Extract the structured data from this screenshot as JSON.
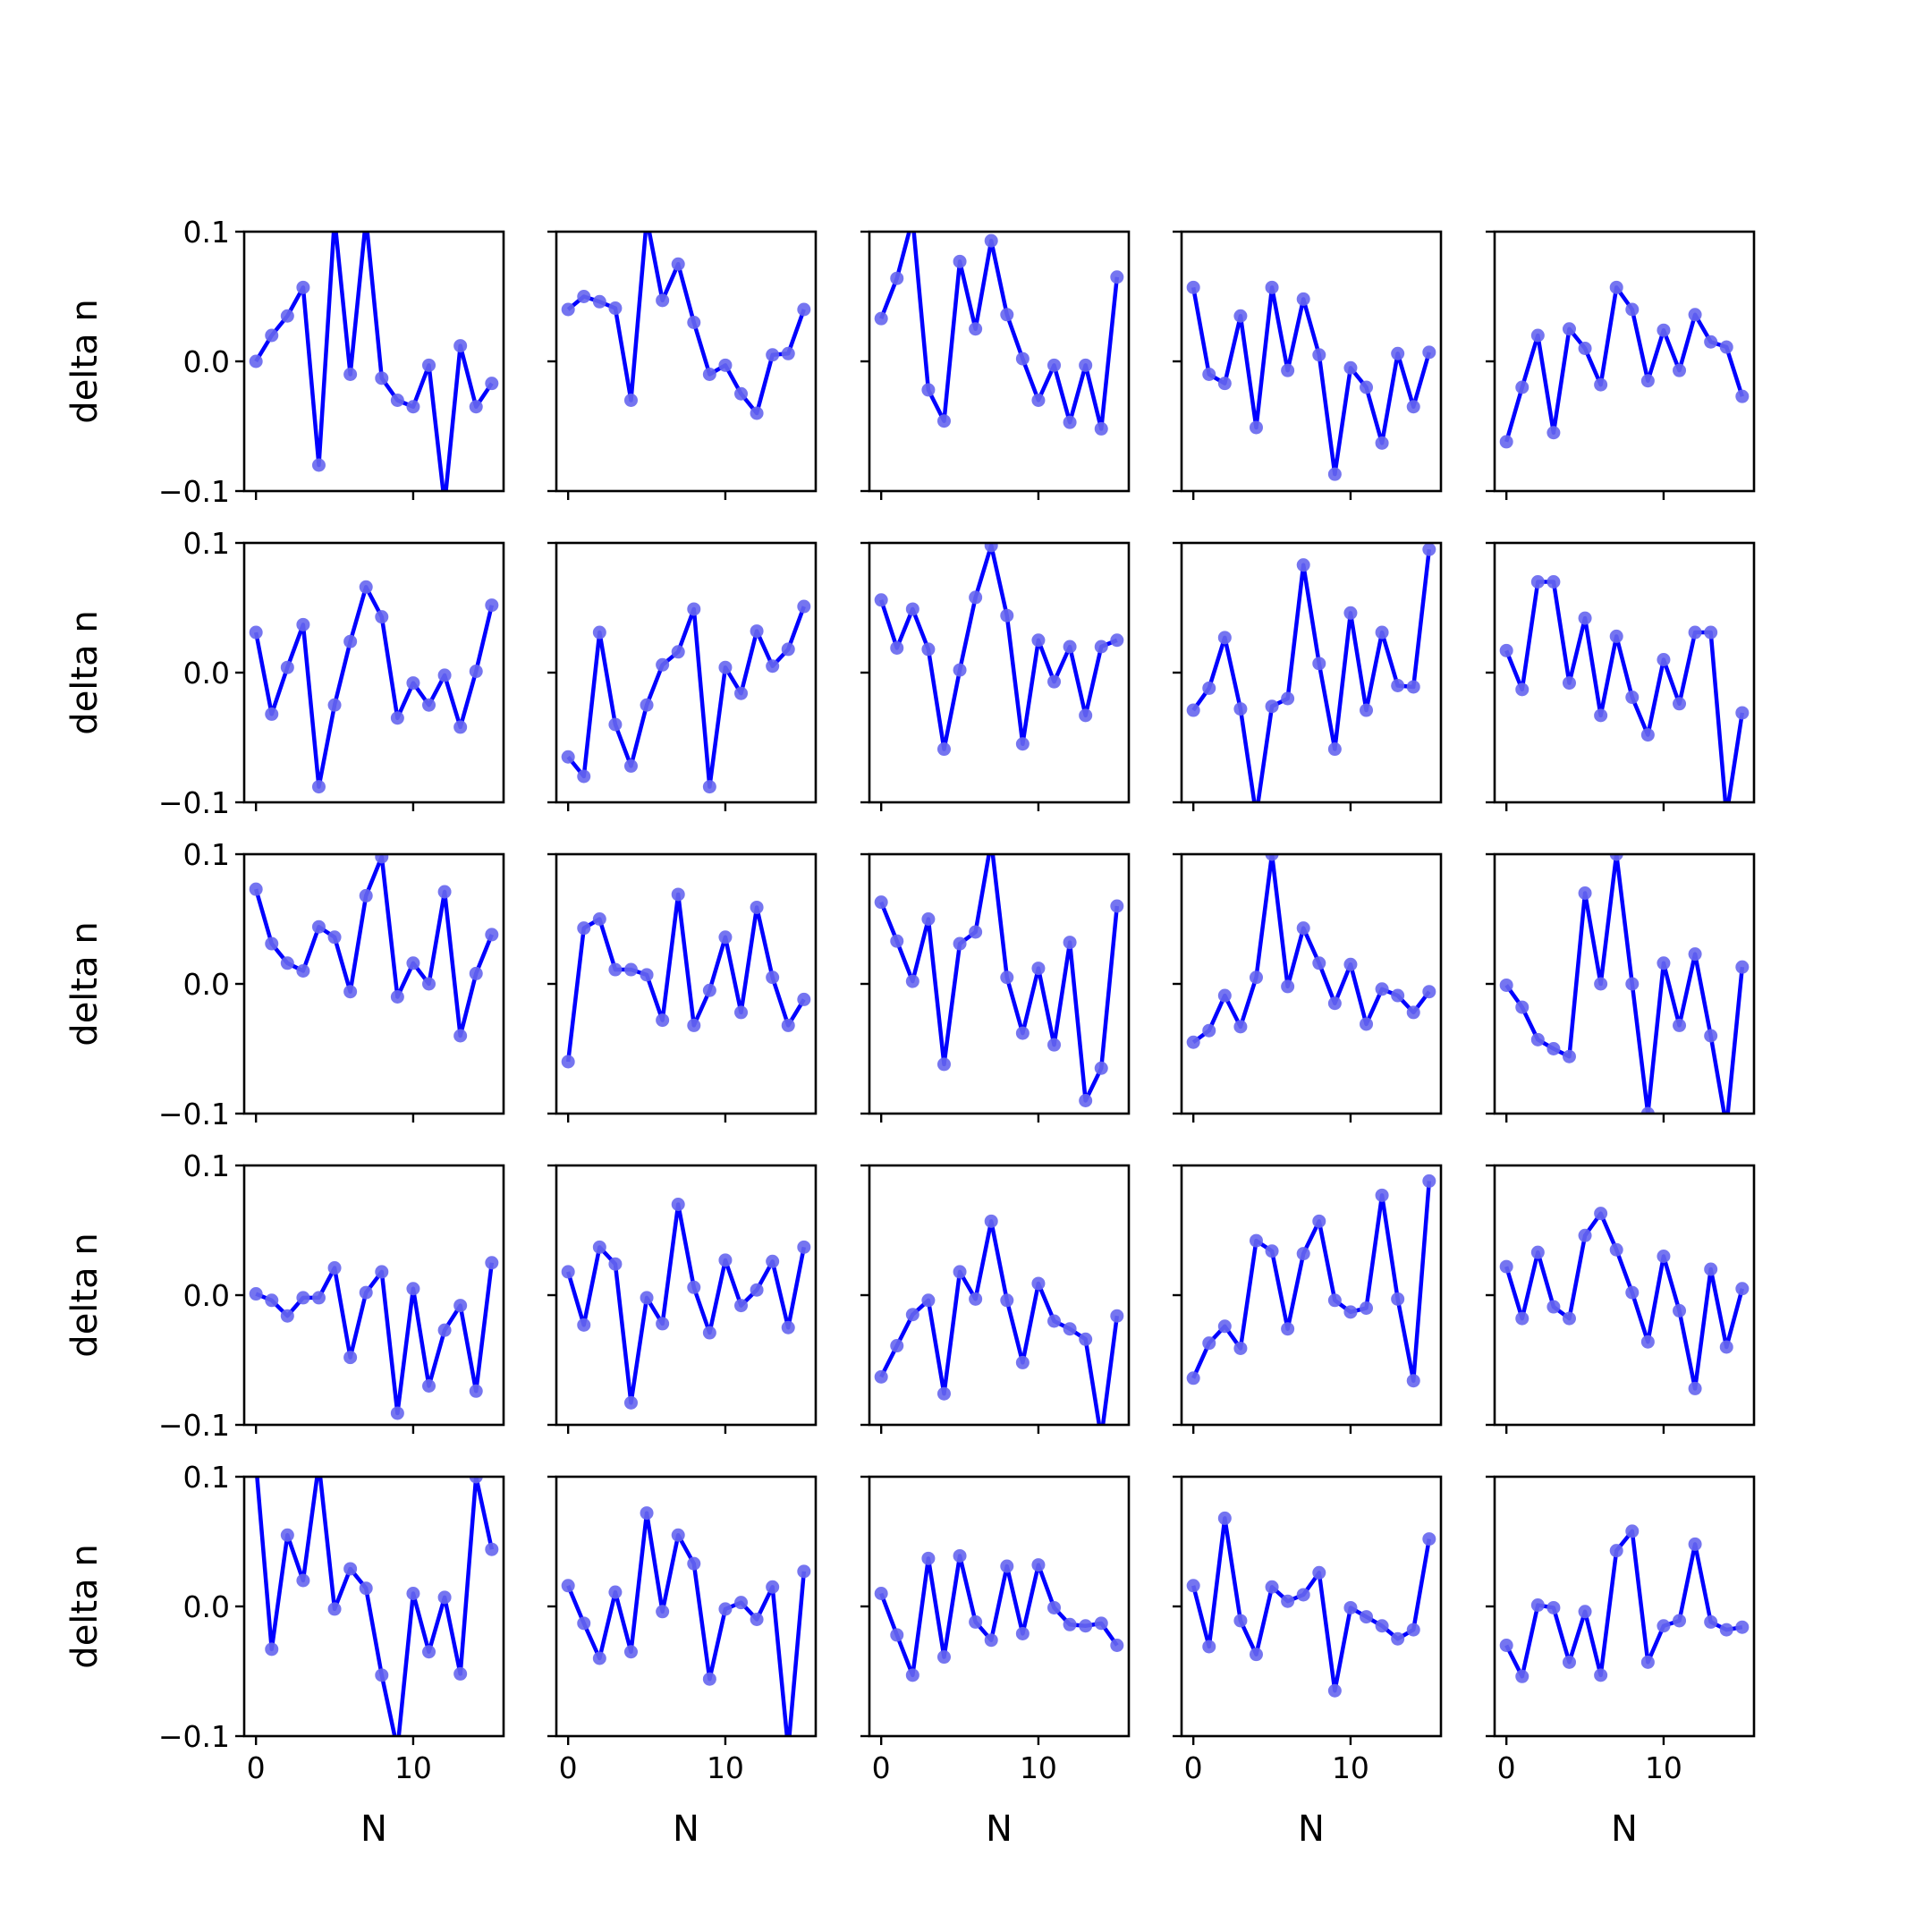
{
  "colors": {
    "line": "#0000ff",
    "marker": "#6666ee",
    "axes": "#000000",
    "background": "#ffffff"
  },
  "chart_data": {
    "type": "line",
    "layout": "5x5 grid of small line plots with shared axes",
    "xlabel": "N",
    "ylabel": "delta n",
    "xlim": [
      -0.75,
      15.75
    ],
    "ylim": [
      -0.1,
      0.1
    ],
    "xticks": [
      0,
      10
    ],
    "xtick_labels": [
      "0",
      "10"
    ],
    "yticks": [
      -0.1,
      0.0,
      0.1
    ],
    "ytick_labels": [
      "−0.1",
      "0.0",
      "0.1"
    ],
    "x": [
      0,
      1,
      2,
      3,
      4,
      5,
      6,
      7,
      8,
      9,
      10,
      11,
      12,
      13,
      14,
      15
    ],
    "panels": [
      [
        {
          "values": [
            0.0,
            0.02,
            0.035,
            0.057,
            -0.08,
            0.11,
            -0.01,
            0.11,
            -0.013,
            -0.03,
            -0.035,
            -0.003,
            -0.11,
            0.012,
            -0.035,
            -0.017
          ]
        },
        {
          "values": [
            0.04,
            0.05,
            0.046,
            0.041,
            -0.03,
            0.11,
            0.047,
            0.075,
            0.03,
            -0.01,
            -0.003,
            -0.025,
            -0.04,
            0.005,
            0.006,
            0.04
          ]
        },
        {
          "values": [
            0.033,
            0.064,
            0.11,
            -0.022,
            -0.046,
            0.077,
            0.025,
            0.093,
            0.036,
            0.002,
            -0.03,
            -0.003,
            -0.047,
            -0.003,
            -0.052,
            0.065
          ]
        },
        {
          "values": [
            0.057,
            -0.01,
            -0.017,
            0.035,
            -0.051,
            0.057,
            -0.007,
            0.048,
            0.005,
            -0.087,
            -0.005,
            -0.02,
            -0.063,
            0.006,
            -0.035,
            0.007
          ]
        },
        {
          "values": [
            -0.062,
            -0.02,
            0.02,
            -0.055,
            0.025,
            0.01,
            -0.018,
            0.057,
            0.04,
            -0.015,
            0.024,
            -0.007,
            0.036,
            0.015,
            0.011,
            -0.027
          ]
        }
      ],
      [
        {
          "values": [
            0.031,
            -0.032,
            0.004,
            0.037,
            -0.088,
            -0.025,
            0.024,
            0.066,
            0.043,
            -0.035,
            -0.008,
            -0.025,
            -0.002,
            -0.042,
            0.001,
            0.052
          ]
        },
        {
          "values": [
            -0.065,
            -0.08,
            0.031,
            -0.04,
            -0.072,
            -0.025,
            0.006,
            0.016,
            0.049,
            -0.088,
            0.004,
            -0.016,
            0.032,
            0.005,
            0.018,
            0.051
          ]
        },
        {
          "values": [
            0.056,
            0.019,
            0.049,
            0.018,
            -0.059,
            0.002,
            0.058,
            0.098,
            0.044,
            -0.055,
            0.025,
            -0.007,
            0.02,
            -0.033,
            0.02,
            0.025
          ]
        },
        {
          "values": [
            -0.029,
            -0.012,
            0.027,
            -0.028,
            -0.11,
            -0.026,
            -0.02,
            0.083,
            0.007,
            -0.059,
            0.046,
            -0.029,
            0.031,
            -0.01,
            -0.011,
            0.095
          ]
        },
        {
          "values": [
            0.017,
            -0.013,
            0.07,
            0.07,
            -0.008,
            0.042,
            -0.033,
            0.028,
            -0.019,
            -0.048,
            0.01,
            -0.024,
            0.031,
            0.031,
            -0.11,
            -0.031
          ]
        }
      ],
      [
        {
          "values": [
            0.073,
            0.031,
            0.016,
            0.01,
            0.044,
            0.036,
            -0.006,
            0.068,
            0.098,
            -0.01,
            0.016,
            0.0,
            0.071,
            -0.04,
            0.008,
            0.038
          ]
        },
        {
          "values": [
            -0.06,
            0.043,
            0.05,
            0.011,
            0.011,
            0.007,
            -0.028,
            0.069,
            -0.032,
            -0.005,
            0.036,
            -0.022,
            0.059,
            0.005,
            -0.032,
            -0.012
          ]
        },
        {
          "values": [
            0.063,
            0.033,
            0.002,
            0.05,
            -0.062,
            0.031,
            0.04,
            0.11,
            0.005,
            -0.038,
            0.012,
            -0.047,
            0.032,
            -0.09,
            -0.065,
            0.06
          ]
        },
        {
          "values": [
            -0.045,
            -0.036,
            -0.009,
            -0.033,
            0.005,
            0.1,
            -0.002,
            0.043,
            0.016,
            -0.015,
            0.015,
            -0.031,
            -0.004,
            -0.009,
            -0.022,
            -0.006
          ]
        },
        {
          "values": [
            -0.001,
            -0.018,
            -0.043,
            -0.05,
            -0.056,
            0.07,
            0.0,
            0.1,
            0.0,
            -0.1,
            0.016,
            -0.032,
            0.023,
            -0.04,
            -0.11,
            0.013
          ]
        }
      ],
      [
        {
          "values": [
            0.001,
            -0.004,
            -0.016,
            -0.002,
            -0.002,
            0.021,
            -0.048,
            0.002,
            0.018,
            -0.091,
            0.005,
            -0.07,
            -0.027,
            -0.008,
            -0.074,
            0.025
          ]
        },
        {
          "values": [
            0.018,
            -0.023,
            0.037,
            0.024,
            -0.083,
            -0.002,
            -0.022,
            0.07,
            0.006,
            -0.029,
            0.027,
            -0.008,
            0.004,
            0.026,
            -0.025,
            0.037
          ]
        },
        {
          "values": [
            -0.063,
            -0.039,
            -0.015,
            -0.004,
            -0.076,
            0.018,
            -0.003,
            0.057,
            -0.004,
            -0.052,
            0.009,
            -0.02,
            -0.026,
            -0.034,
            -0.11,
            -0.016
          ]
        },
        {
          "values": [
            -0.064,
            -0.037,
            -0.024,
            -0.041,
            0.042,
            0.034,
            -0.026,
            0.032,
            0.057,
            -0.004,
            -0.013,
            -0.01,
            0.077,
            -0.003,
            -0.066,
            0.088
          ]
        },
        {
          "values": [
            0.022,
            -0.018,
            0.033,
            -0.009,
            -0.018,
            0.046,
            0.063,
            0.035,
            0.002,
            -0.036,
            0.03,
            -0.012,
            -0.072,
            0.02,
            -0.04,
            0.005
          ]
        }
      ],
      [
        {
          "values": [
            0.11,
            -0.033,
            0.055,
            0.02,
            0.11,
            -0.002,
            0.029,
            0.014,
            -0.053,
            -0.11,
            0.01,
            -0.035,
            0.007,
            -0.052,
            0.1,
            0.044
          ]
        },
        {
          "values": [
            0.016,
            -0.013,
            -0.04,
            0.011,
            -0.035,
            0.072,
            -0.004,
            0.055,
            0.033,
            -0.056,
            -0.002,
            0.003,
            -0.01,
            0.015,
            -0.11,
            0.027
          ]
        },
        {
          "values": [
            0.01,
            -0.022,
            -0.053,
            0.037,
            -0.039,
            0.039,
            -0.012,
            -0.026,
            0.031,
            -0.021,
            0.032,
            -0.001,
            -0.014,
            -0.015,
            -0.013,
            -0.03
          ]
        },
        {
          "values": [
            0.016,
            -0.031,
            0.068,
            -0.011,
            -0.037,
            0.015,
            0.004,
            0.009,
            0.026,
            -0.065,
            -0.001,
            -0.008,
            -0.015,
            -0.025,
            -0.018,
            0.052
          ]
        },
        {
          "values": [
            -0.03,
            -0.054,
            0.001,
            -0.001,
            -0.043,
            -0.004,
            -0.053,
            0.043,
            0.058,
            -0.043,
            -0.015,
            -0.011,
            0.048,
            -0.012,
            -0.018,
            -0.016
          ]
        }
      ]
    ]
  }
}
